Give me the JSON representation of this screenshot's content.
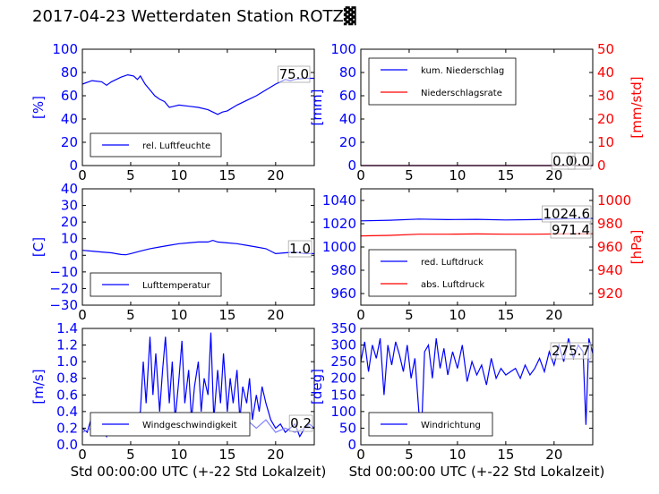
{
  "title": "2017-04-23 Wetterdaten Station ROTZ▓",
  "colors": {
    "left_axis": "#0000ff",
    "right_axis": "#ff0000",
    "series_blue": "#0000ff",
    "series_red": "#ff0000",
    "series_light": "#8080ff"
  },
  "chart_data": [
    {
      "id": "humidity",
      "type": "line",
      "xlim": [
        0,
        24
      ],
      "ylim": [
        0,
        100
      ],
      "xticks": [
        "0",
        "5",
        "10",
        "15",
        "20"
      ],
      "yticks": [
        "0",
        "20",
        "40",
        "60",
        "80",
        "100"
      ],
      "ylabel": "[%]",
      "xlabel": "",
      "legend_position": "lower-left",
      "current_value": "75.0",
      "series": [
        {
          "name": "rel. Luftfeuchte",
          "color": "#0000ff",
          "x": [
            0,
            1,
            2,
            2.5,
            3,
            4,
            4.7,
            5.3,
            5.7,
            6,
            6.5,
            7,
            7.5,
            8,
            8.5,
            9,
            9.5,
            10,
            11,
            12,
            13,
            13.5,
            14,
            14.5,
            15,
            16,
            17,
            18,
            19,
            20,
            20.5,
            21,
            21.5,
            22,
            23,
            24
          ],
          "y": [
            70,
            73,
            72,
            69,
            72,
            76,
            78,
            77,
            74,
            77,
            70,
            65,
            60,
            57,
            55,
            50,
            51,
            52,
            51,
            50,
            48,
            46,
            44,
            46,
            47,
            52,
            56,
            60,
            65,
            70,
            72,
            74,
            73,
            74,
            75,
            75
          ]
        }
      ]
    },
    {
      "id": "precipitation",
      "type": "line",
      "xlim": [
        0,
        24
      ],
      "ylim": [
        0,
        100
      ],
      "ylim_right": [
        0,
        50
      ],
      "xticks": [
        "0",
        "5",
        "10",
        "15",
        "20"
      ],
      "yticks": [
        "0",
        "20",
        "40",
        "60",
        "80",
        "100"
      ],
      "yticks_right": [
        "0",
        "10",
        "20",
        "30",
        "40",
        "50"
      ],
      "ylabel": "[mm]",
      "ylabel_right": "[mm/std]",
      "xlabel": "",
      "legend_position": "upper-left",
      "current_value": "0.0",
      "current_value_secondary": "0.0",
      "series": [
        {
          "name": "kum. Niederschlag",
          "color": "#0000ff",
          "axis": "left",
          "x": [
            0,
            24
          ],
          "y": [
            0,
            0
          ]
        },
        {
          "name": "Niederschlagsrate",
          "color": "#ff0000",
          "axis": "right",
          "x": [
            0,
            24
          ],
          "y": [
            0,
            0
          ]
        }
      ]
    },
    {
      "id": "temperature",
      "type": "line",
      "xlim": [
        0,
        24
      ],
      "ylim": [
        -30,
        40
      ],
      "xticks": [
        "0",
        "5",
        "10",
        "15",
        "20"
      ],
      "yticks": [
        "−30",
        "−20",
        "−10",
        "0",
        "10",
        "20",
        "30",
        "40"
      ],
      "ylabel": "[C]",
      "xlabel": "",
      "legend_position": "lower-left",
      "current_value": "1.0",
      "series": [
        {
          "name": "Lufttemperatur",
          "color": "#0000ff",
          "x": [
            0,
            1,
            2,
            3,
            4,
            4.5,
            5,
            6,
            7,
            8,
            9,
            10,
            11,
            12,
            13,
            13.5,
            14,
            15,
            16,
            17,
            18,
            19,
            20,
            21,
            22,
            23,
            24
          ],
          "y": [
            3,
            2.5,
            2,
            1.5,
            0.5,
            0.3,
            1,
            2.5,
            4,
            5,
            6,
            7,
            7.5,
            8,
            8,
            9,
            8,
            7.5,
            7,
            6,
            5,
            4,
            1,
            1.5,
            2,
            1,
            1
          ]
        }
      ]
    },
    {
      "id": "pressure",
      "type": "line",
      "xlim": [
        0,
        24
      ],
      "ylim": [
        950,
        1050
      ],
      "ylim_right": [
        910,
        1010
      ],
      "xticks": [
        "0",
        "5",
        "10",
        "15",
        "20"
      ],
      "yticks": [
        "960",
        "980",
        "1000",
        "1020",
        "1040"
      ],
      "yticks_right": [
        "920",
        "940",
        "960",
        "980",
        "1000"
      ],
      "ylabel": "",
      "ylabel_right": "[hPa]",
      "xlabel": "",
      "legend_position": "lower-left",
      "current_value": "1024.6",
      "current_value_secondary": "971.4",
      "series": [
        {
          "name": "red. Luftdruck",
          "color": "#0000ff",
          "axis": "left",
          "x": [
            0,
            3,
            6,
            9,
            12,
            15,
            18,
            21,
            24
          ],
          "y": [
            1022.5,
            1023,
            1024,
            1023.5,
            1023.8,
            1023.2,
            1023.5,
            1024.2,
            1024.6
          ]
        },
        {
          "name": "abs. Luftdruck",
          "color": "#ff0000",
          "axis": "right",
          "x": [
            0,
            3,
            6,
            9,
            12,
            15,
            18,
            21,
            24
          ],
          "y": [
            969.5,
            970,
            971,
            971,
            971.2,
            971,
            971,
            971.3,
            971.4
          ]
        }
      ]
    },
    {
      "id": "windspeed",
      "type": "line",
      "xlim": [
        0,
        24
      ],
      "ylim": [
        0,
        1.4
      ],
      "xticks": [
        "0",
        "5",
        "10",
        "15",
        "20"
      ],
      "yticks": [
        "0.0",
        "0.2",
        "0.4",
        "0.6",
        "0.8",
        "1.0",
        "1.2",
        "1.4"
      ],
      "ylabel": "[m/s]",
      "xlabel": "Std 00:00:00 UTC (+-22 Std Lokalzeit)",
      "legend_position": "lower-center",
      "current_value": "0.2",
      "series": [
        {
          "name": "Windgeschwindigkeit",
          "color": "#0000ff",
          "x": [
            0,
            0.5,
            1,
            1.5,
            2,
            2.5,
            3,
            3.5,
            4,
            4.5,
            5,
            5.5,
            6,
            6.3,
            6.6,
            7,
            7.3,
            7.6,
            8,
            8.3,
            8.6,
            9,
            9.3,
            9.6,
            10,
            10.3,
            10.6,
            11,
            11.3,
            11.6,
            12,
            12.3,
            12.6,
            13,
            13.3,
            13.6,
            14,
            14.3,
            14.6,
            15,
            15.3,
            15.6,
            16,
            16.3,
            16.6,
            17,
            17.3,
            17.6,
            18,
            18.3,
            18.6,
            19,
            19.5,
            20,
            20.5,
            21,
            21.5,
            22,
            22.5,
            23,
            23.5,
            24
          ],
          "y": [
            0.2,
            0.15,
            0.35,
            0.2,
            0.25,
            0.1,
            0.3,
            0.2,
            0.15,
            0.35,
            0.2,
            0.3,
            0.4,
            1.0,
            0.5,
            1.3,
            0.6,
            1.1,
            0.4,
            0.9,
            1.3,
            0.5,
            1.0,
            0.3,
            0.8,
            1.25,
            0.5,
            0.9,
            0.3,
            0.7,
            1.0,
            0.4,
            0.8,
            0.6,
            1.35,
            0.3,
            0.9,
            0.5,
            1.1,
            0.4,
            0.8,
            0.5,
            0.9,
            0.3,
            0.7,
            0.5,
            0.8,
            0.3,
            0.6,
            0.4,
            0.7,
            0.5,
            0.3,
            0.2,
            0.25,
            0.15,
            0.2,
            0.25,
            0.1,
            0.2,
            0.25,
            0.2
          ]
        },
        {
          "name": "",
          "color": "#8080ff",
          "x": [
            0,
            1,
            2,
            3,
            4,
            5,
            6,
            7,
            8,
            9,
            10,
            11,
            12,
            13,
            14,
            15,
            16,
            17,
            18,
            19,
            20,
            21,
            22,
            23,
            24
          ],
          "y": [
            0.15,
            0.2,
            0.3,
            0.25,
            0.2,
            0.3,
            0.35,
            0.3,
            0.25,
            0.3,
            0.25,
            0.2,
            0.3,
            0.25,
            0.3,
            0.2,
            0.25,
            0.3,
            0.2,
            0.3,
            0.15,
            0.2,
            0.15,
            0.2,
            0.2
          ]
        }
      ]
    },
    {
      "id": "winddir",
      "type": "line",
      "xlim": [
        0,
        24
      ],
      "ylim": [
        0,
        350
      ],
      "xticks": [
        "0",
        "5",
        "10",
        "15",
        "20"
      ],
      "yticks": [
        "0",
        "50",
        "100",
        "150",
        "200",
        "250",
        "300",
        "350"
      ],
      "ylabel": "[deg]",
      "xlabel": "Std 00:00:00 UTC (+-22 Std Lokalzeit)",
      "legend_position": "lower-left",
      "current_value": "275.7",
      "series": [
        {
          "name": "Windrichtung",
          "color": "#0000ff",
          "x": [
            0,
            0.4,
            0.8,
            1.2,
            1.6,
            2,
            2.4,
            2.8,
            3.2,
            3.6,
            4,
            4.4,
            4.8,
            5.2,
            5.6,
            6,
            6.3,
            6.6,
            7,
            7.4,
            7.8,
            8.2,
            8.6,
            9,
            9.5,
            10,
            10.5,
            11,
            11.5,
            12,
            12.5,
            13,
            13.5,
            14,
            14.5,
            15,
            15.5,
            16,
            16.5,
            17,
            17.5,
            18,
            18.5,
            19,
            19.5,
            20,
            20.5,
            21,
            21.5,
            22,
            22.5,
            23,
            23.3,
            23.6,
            24
          ],
          "y": [
            250,
            310,
            220,
            300,
            260,
            320,
            150,
            300,
            240,
            310,
            270,
            220,
            300,
            200,
            260,
            100,
            60,
            280,
            300,
            200,
            320,
            230,
            290,
            210,
            280,
            230,
            300,
            190,
            250,
            210,
            240,
            180,
            260,
            200,
            230,
            210,
            220,
            230,
            200,
            240,
            210,
            230,
            260,
            220,
            280,
            240,
            300,
            250,
            320,
            260,
            300,
            280,
            60,
            320,
            275
          ]
        }
      ]
    }
  ]
}
